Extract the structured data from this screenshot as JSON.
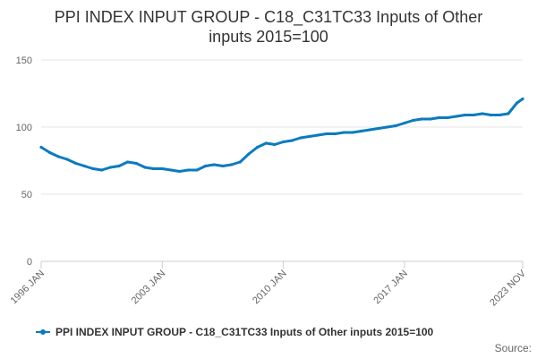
{
  "chart_data": {
    "type": "line",
    "title_line1": "PPI INDEX INPUT GROUP - C18_C31TC33 Inputs of Other",
    "title_line2": "inputs 2015=100",
    "xlabel": "",
    "ylabel": "",
    "ylim": [
      0,
      150
    ],
    "y_ticks": [
      "0",
      "50",
      "100",
      "150"
    ],
    "x_range": [
      "1996-01",
      "2023-11"
    ],
    "x_ticks": [
      "1996 JAN",
      "2003 JAN",
      "2010 JAN",
      "2017 JAN",
      "2023 NOV"
    ],
    "grid": true,
    "legend_position": "bottom-left",
    "series": [
      {
        "name": "PPI INDEX INPUT GROUP - C18_C31TC33 Inputs of Other inputs 2015=100",
        "color": "#0b7bbf",
        "x": [
          "1996-01",
          "1996-07",
          "1997-01",
          "1997-07",
          "1998-01",
          "1998-07",
          "1999-01",
          "1999-07",
          "2000-01",
          "2000-07",
          "2001-01",
          "2001-07",
          "2002-01",
          "2002-07",
          "2003-01",
          "2003-07",
          "2004-01",
          "2004-07",
          "2005-01",
          "2005-07",
          "2006-01",
          "2006-07",
          "2007-01",
          "2007-07",
          "2008-01",
          "2008-07",
          "2009-01",
          "2009-07",
          "2010-01",
          "2010-07",
          "2011-01",
          "2011-07",
          "2012-01",
          "2012-07",
          "2013-01",
          "2013-07",
          "2014-01",
          "2014-07",
          "2015-01",
          "2015-07",
          "2016-01",
          "2016-07",
          "2017-01",
          "2017-07",
          "2018-01",
          "2018-07",
          "2019-01",
          "2019-07",
          "2020-01",
          "2020-07",
          "2021-01",
          "2021-07",
          "2022-01",
          "2022-07",
          "2023-01",
          "2023-07",
          "2023-11"
        ],
        "values": [
          85,
          81,
          78,
          76,
          73,
          71,
          69,
          68,
          70,
          71,
          74,
          73,
          70,
          69,
          69,
          68,
          67,
          68,
          68,
          71,
          72,
          71,
          72,
          74,
          80,
          85,
          88,
          87,
          89,
          90,
          92,
          93,
          94,
          95,
          95,
          96,
          96,
          97,
          98,
          99,
          100,
          101,
          103,
          105,
          106,
          106,
          107,
          107,
          108,
          109,
          109,
          110,
          109,
          109,
          110,
          118,
          121
        ]
      }
    ]
  },
  "source_label": "Source:"
}
